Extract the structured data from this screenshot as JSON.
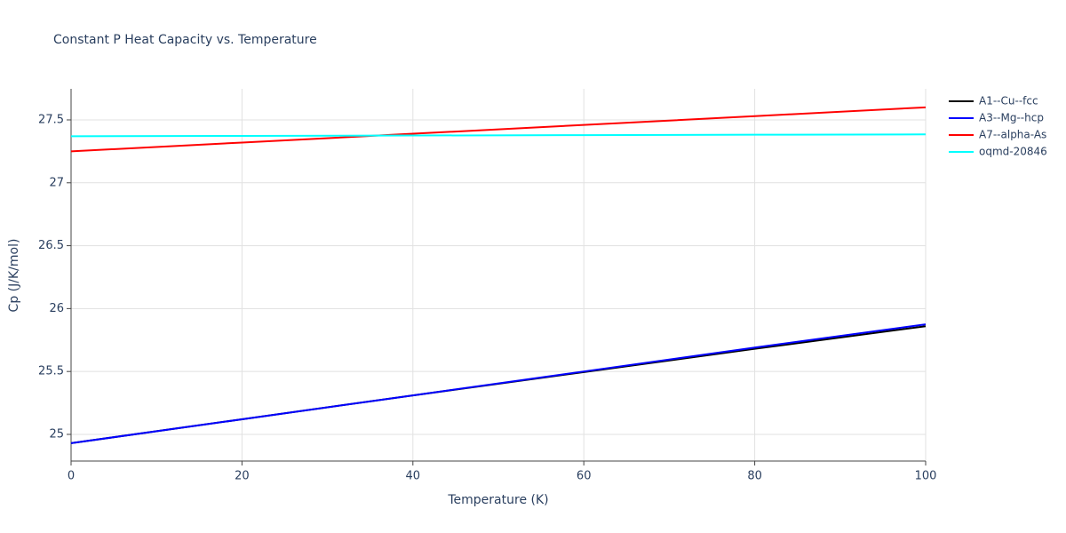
{
  "chart_data": {
    "type": "line",
    "title": "Constant P Heat Capacity vs. Temperature",
    "x_label": "Temperature (K)",
    "y_label": "Cp (J/K/mol)",
    "x": [
      0,
      20,
      40,
      60,
      80,
      100
    ],
    "series": [
      {
        "name": "A1--Cu--fcc",
        "color": "#000000",
        "values": [
          24.93,
          25.12,
          25.31,
          25.495,
          25.68,
          25.86
        ]
      },
      {
        "name": "A3--Mg--hcp",
        "color": "#0000ff",
        "values": [
          24.93,
          25.12,
          25.31,
          25.5,
          25.69,
          25.875
        ]
      },
      {
        "name": "A7--alpha-As",
        "color": "#ff0000",
        "values": [
          27.25,
          27.32,
          27.39,
          27.46,
          27.53,
          27.6
        ]
      },
      {
        "name": "oqmd-20846",
        "color": "#00ffff",
        "values": [
          27.37,
          27.373,
          27.376,
          27.379,
          27.382,
          27.385
        ]
      }
    ],
    "xlim": [
      0,
      100
    ],
    "xticks": [
      0,
      20,
      40,
      60,
      80,
      100
    ],
    "ylim": [
      24.788,
      27.747
    ],
    "yticks": [
      25,
      25.5,
      26,
      26.5,
      27,
      27.5
    ],
    "grid": true,
    "legend": "outside-right-top"
  }
}
